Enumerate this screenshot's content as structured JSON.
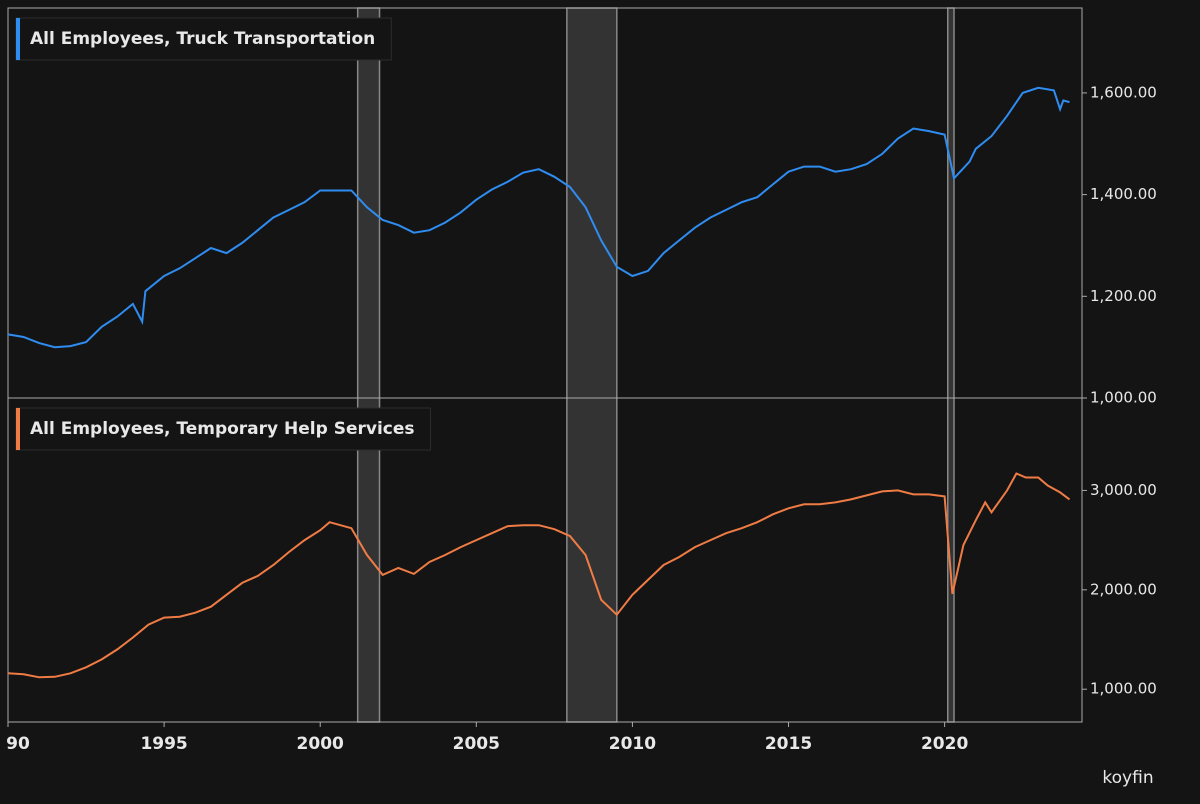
{
  "chart_data": [
    {
      "type": "line",
      "xlim": [
        1990,
        2024.4
      ],
      "ylim": [
        1000,
        1767
      ],
      "yticks": [
        {
          "value": 1000,
          "label": "1,000.00"
        },
        {
          "value": 1200,
          "label": "1,200.00"
        },
        {
          "value": 1400,
          "label": "1,400.00"
        },
        {
          "value": 1600,
          "label": "1,600.00"
        }
      ],
      "shaded_periods": [
        [
          2001.2,
          2001.9
        ],
        [
          2007.9,
          2009.5
        ],
        [
          2020.1,
          2020.3
        ]
      ],
      "x": [
        1990.0,
        1990.5,
        1991.0,
        1991.5,
        1992.0,
        1992.5,
        1993.0,
        1993.5,
        1994.0,
        1994.3,
        1994.4,
        1995.0,
        1995.5,
        1996.0,
        1996.5,
        1997.0,
        1997.5,
        1998.0,
        1998.5,
        1999.0,
        1999.5,
        2000.0,
        2000.5,
        2001.0,
        2001.5,
        2002.0,
        2002.5,
        2003.0,
        2003.5,
        2004.0,
        2004.5,
        2005.0,
        2005.5,
        2006.0,
        2006.5,
        2007.0,
        2007.5,
        2008.0,
        2008.5,
        2009.0,
        2009.5,
        2010.0,
        2010.5,
        2011.0,
        2011.5,
        2012.0,
        2012.5,
        2013.0,
        2013.5,
        2014.0,
        2014.5,
        2015.0,
        2015.5,
        2016.0,
        2016.5,
        2017.0,
        2017.5,
        2018.0,
        2018.5,
        2019.0,
        2019.5,
        2020.0,
        2020.3,
        2020.8,
        2021.0,
        2021.5,
        2022.0,
        2022.5,
        2023.0,
        2023.5,
        2023.7,
        2023.8,
        2024.0
      ],
      "series": [
        {
          "name": "All Employees, Truck Transportation",
          "color": "#2f8cf0",
          "values": [
            1125,
            1120,
            1108,
            1100,
            1102,
            1110,
            1140,
            1160,
            1185,
            1150,
            1210,
            1240,
            1255,
            1275,
            1295,
            1285,
            1305,
            1330,
            1355,
            1370,
            1385,
            1408,
            1408,
            1408,
            1375,
            1350,
            1340,
            1325,
            1330,
            1345,
            1365,
            1390,
            1410,
            1425,
            1443,
            1450,
            1435,
            1415,
            1375,
            1310,
            1258,
            1240,
            1250,
            1285,
            1310,
            1335,
            1355,
            1370,
            1385,
            1395,
            1420,
            1445,
            1455,
            1455,
            1445,
            1450,
            1460,
            1480,
            1510,
            1530,
            1525,
            1518,
            1432,
            1465,
            1490,
            1515,
            1555,
            1600,
            1610,
            1605,
            1568,
            1585,
            1582
          ]
        }
      ]
    },
    {
      "type": "line",
      "xlim": [
        1990,
        2024.4
      ],
      "ylim": [
        670,
        3930
      ],
      "yticks": [
        {
          "value": 1000,
          "label": "1,000.00"
        },
        {
          "value": 2000,
          "label": "2,000.00"
        },
        {
          "value": 3000,
          "label": "3,000.00"
        }
      ],
      "xticks": [
        {
          "value": 1990,
          "label": "90"
        },
        1995,
        2000,
        2005,
        2010,
        2015,
        2020
      ],
      "x": [
        1990.0,
        1990.5,
        1991.0,
        1991.5,
        1992.0,
        1992.5,
        1993.0,
        1993.5,
        1994.0,
        1994.5,
        1995.0,
        1995.5,
        1996.0,
        1996.5,
        1997.0,
        1997.5,
        1998.0,
        1998.5,
        1999.0,
        1999.5,
        2000.0,
        2000.3,
        2001.0,
        2001.5,
        2002.0,
        2002.5,
        2003.0,
        2003.5,
        2004.0,
        2004.5,
        2005.0,
        2005.5,
        2006.0,
        2006.5,
        2007.0,
        2007.5,
        2008.0,
        2008.5,
        2009.0,
        2009.5,
        2010.0,
        2010.5,
        2011.0,
        2011.5,
        2012.0,
        2012.5,
        2013.0,
        2013.5,
        2014.0,
        2014.5,
        2015.0,
        2015.5,
        2016.0,
        2016.5,
        2017.0,
        2017.5,
        2018.0,
        2018.5,
        2019.0,
        2019.5,
        2020.0,
        2020.25,
        2020.6,
        2021.0,
        2021.3,
        2021.5,
        2022.0,
        2022.3,
        2022.6,
        2023.0,
        2023.3,
        2023.7,
        2024.0
      ],
      "series": [
        {
          "name": "All Employees, Temporary Help Services",
          "color": "#f07c45",
          "values": [
            1160,
            1150,
            1120,
            1125,
            1160,
            1220,
            1300,
            1400,
            1520,
            1650,
            1720,
            1730,
            1770,
            1830,
            1950,
            2070,
            2140,
            2250,
            2380,
            2500,
            2600,
            2680,
            2620,
            2350,
            2150,
            2220,
            2160,
            2280,
            2350,
            2430,
            2500,
            2570,
            2640,
            2650,
            2650,
            2610,
            2540,
            2350,
            1900,
            1750,
            1950,
            2100,
            2250,
            2330,
            2430,
            2500,
            2570,
            2620,
            2680,
            2760,
            2820,
            2860,
            2860,
            2880,
            2910,
            2950,
            2990,
            3000,
            2960,
            2960,
            2940,
            1960,
            2450,
            2700,
            2880,
            2780,
            3000,
            3170,
            3130,
            3130,
            3050,
            2980,
            2910
          ]
        }
      ]
    }
  ],
  "logo": "koyfin"
}
